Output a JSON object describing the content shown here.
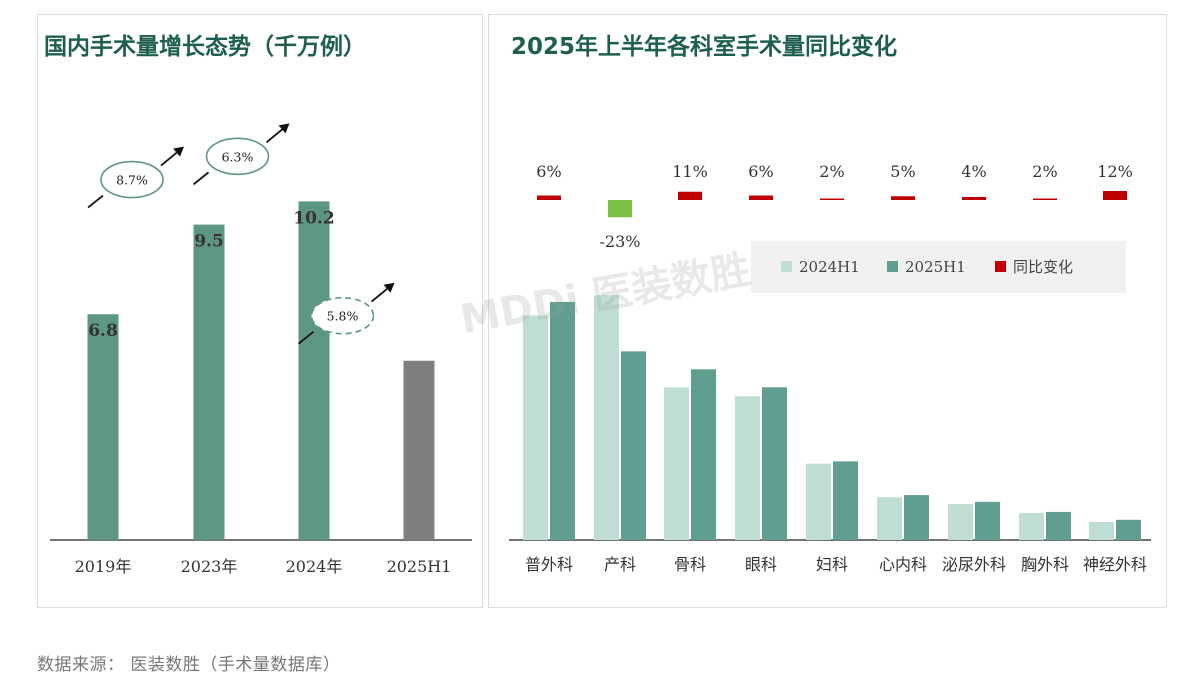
{
  "left_chart": {
    "title": "国内手术量增长态势（千万例）",
    "chart_data": {
      "type": "bar",
      "categories": [
        "2019年",
        "2023年",
        "2024年",
        "2025H1"
      ],
      "values": [
        6.8,
        9.5,
        10.2,
        5.4
      ],
      "value_labels": [
        "6.8",
        "9.5",
        "10.2",
        ""
      ],
      "growth_labels": [
        "8.7%",
        "6.3%",
        "5.8%"
      ],
      "ylim": [
        0,
        12.5
      ],
      "colors": {
        "bar": "#5e9686",
        "bar_partial": "#7f7f7f"
      }
    }
  },
  "right_chart": {
    "title": "2025年上半年各科室手术量同比变化",
    "chart_data": {
      "type": "bar",
      "categories": [
        "普外科",
        "产科",
        "骨科",
        "眼科",
        "妇科",
        "心内科",
        "泌尿外科",
        "胸外科",
        "神经外科"
      ],
      "series": [
        {
          "name": "2024H1",
          "values": [
            100,
            109,
            68,
            64,
            34,
            19,
            16,
            12,
            8
          ],
          "color": "#bfddd5"
        },
        {
          "name": "2025H1",
          "values": [
            106,
            84,
            76,
            68,
            35,
            20,
            17,
            12.5,
            9
          ],
          "color": "#5f9e91"
        }
      ],
      "yoy_change": {
        "name": "同比变化",
        "values": [
          6,
          -23,
          11,
          6,
          2,
          5,
          4,
          2,
          12
        ],
        "labels": [
          "6%",
          "-23%",
          "11%",
          "6%",
          "2%",
          "5%",
          "4%",
          "2%",
          "12%"
        ],
        "positive_color": "#c00000",
        "negative_color": "#7ac143"
      },
      "ylim": [
        0,
        118
      ]
    }
  },
  "footer": {
    "source": "数据来源： 医装数胜（手术量数据库）"
  },
  "watermark": "MDDi 医装数胜"
}
